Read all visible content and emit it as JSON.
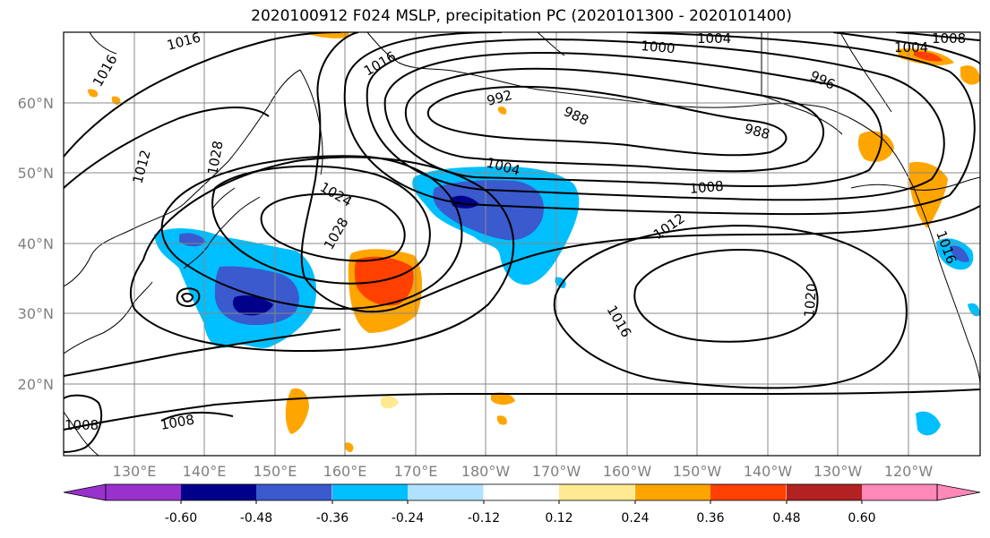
{
  "title": "2020100912 F024 MSLP, precipitation PC (2020101300 - 2020101400)",
  "lat_labels": [
    "60°N",
    "50°N",
    "40°N",
    "30°N",
    "20°N"
  ],
  "lon_labels": [
    "130°E",
    "140°E",
    "150°E",
    "160°E",
    "170°E",
    "180°W",
    "170°W",
    "160°W",
    "150°W",
    "140°W",
    "130°W",
    "120°W"
  ],
  "colorbar": {
    "colors": [
      "#9932CC",
      "#00008B",
      "#3A5ACD",
      "#00BFFF",
      "#B0E2FF",
      "#FFFFFF",
      "#FFE991",
      "#FFA500",
      "#FF4000",
      "#B22222",
      "#FF88B8"
    ],
    "tick_labels": [
      "-0.60",
      "-0.48",
      "-0.36",
      "-0.24",
      "-0.12",
      "0.12",
      "0.24",
      "0.36",
      "0.48",
      "0.60"
    ]
  },
  "contour_labels": [
    "1016",
    "1016",
    "1016",
    "1012",
    "1028",
    "1024",
    "1028",
    "992",
    "988",
    "1000",
    "1004",
    "996",
    "1004",
    "1008",
    "988",
    "1004",
    "1008",
    "1012",
    "1016",
    "1020",
    "1008",
    "1008",
    "1016"
  ],
  "colors": {
    "contour": "#000000",
    "grid": "#888888",
    "axis_label": "#808080"
  }
}
